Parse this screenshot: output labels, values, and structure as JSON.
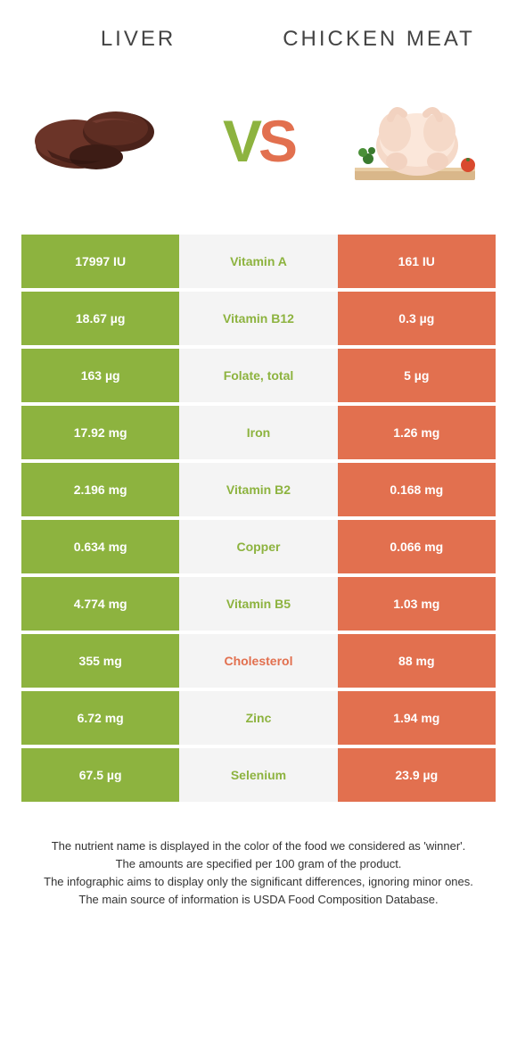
{
  "colors": {
    "green": "#8db33f",
    "orange": "#e2704f",
    "row_mid_bg": "#f4f4f4",
    "title_text": "#444444",
    "footer_text": "#333333"
  },
  "header": {
    "left_title": "LIVER",
    "right_title": "CHICKEN MEAT"
  },
  "vs": {
    "v": "V",
    "s": "S"
  },
  "table": {
    "rows": [
      {
        "left": "17997 IU",
        "mid": "Vitamin A",
        "winner": "green",
        "right": "161 IU"
      },
      {
        "left": "18.67 µg",
        "mid": "Vitamin B12",
        "winner": "green",
        "right": "0.3 µg"
      },
      {
        "left": "163 µg",
        "mid": "Folate, total",
        "winner": "green",
        "right": "5 µg"
      },
      {
        "left": "17.92 mg",
        "mid": "Iron",
        "winner": "green",
        "right": "1.26 mg"
      },
      {
        "left": "2.196 mg",
        "mid": "Vitamin B2",
        "winner": "green",
        "right": "0.168 mg"
      },
      {
        "left": "0.634 mg",
        "mid": "Copper",
        "winner": "green",
        "right": "0.066 mg"
      },
      {
        "left": "4.774 mg",
        "mid": "Vitamin B5",
        "winner": "green",
        "right": "1.03 mg"
      },
      {
        "left": "355 mg",
        "mid": "Cholesterol",
        "winner": "orange",
        "right": "88 mg"
      },
      {
        "left": "6.72 mg",
        "mid": "Zinc",
        "winner": "green",
        "right": "1.94 mg"
      },
      {
        "left": "67.5 µg",
        "mid": "Selenium",
        "winner": "green",
        "right": "23.9 µg"
      }
    ]
  },
  "footer": {
    "line1": "The nutrient name is displayed in the color of the food we considered as 'winner'.",
    "line2": "The amounts are specified per 100 gram of the product.",
    "line3": "The infographic aims to display only the significant differences, ignoring minor ones.",
    "line4": "The main source of information is USDA Food Composition Database."
  }
}
